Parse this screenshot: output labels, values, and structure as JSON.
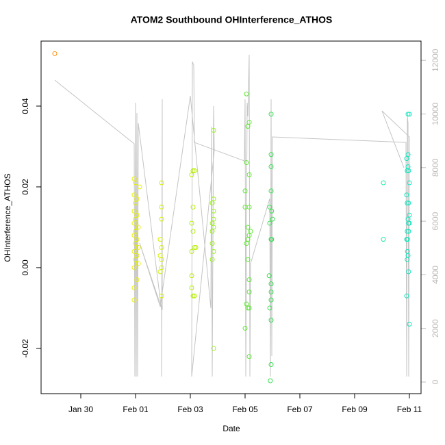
{
  "chart_data": {
    "type": "scatter",
    "title": "ATOM2 Southbound OHInterference_ATHOS",
    "xlabel": "Date",
    "ylabel": "OHInterference_ATHOS",
    "xlim": [
      28.55,
      42.425
    ],
    "ylim": [
      -0.0312,
      0.0561
    ],
    "y2lim": [
      -434,
      12720
    ],
    "xticks": [
      {
        "value": 30,
        "label": "Jan 30"
      },
      {
        "value": 32,
        "label": "Feb 01"
      },
      {
        "value": 34,
        "label": "Feb 03"
      },
      {
        "value": 36,
        "label": "Feb 05"
      },
      {
        "value": 38,
        "label": "Feb 07"
      },
      {
        "value": 40,
        "label": "Feb 09"
      },
      {
        "value": 42,
        "label": "Feb 11"
      }
    ],
    "yticks": [
      -0.02,
      {
        "value": 0,
        "label": "0.00"
      },
      0.02,
      0.04
    ],
    "y2ticks": [
      0,
      2000,
      4000,
      6000,
      8000,
      10000,
      12000
    ],
    "series": [
      {
        "type": "line",
        "axis": "y2",
        "color": "#c4c4c4",
        "x": [
          29.05,
          31.95,
          31.975,
          32.0,
          32.025,
          32.05,
          32.075,
          32.1,
          32.95,
          32.95,
          32.975,
          32.975,
          32.15,
          32.9,
          34.0,
          34.75,
          34.775,
          34.8,
          34.85,
          34.875,
          34.05,
          34.075,
          34.125,
          34.15,
          35.975,
          36.0,
          36.025,
          36.075,
          36.1,
          36.15,
          36.175,
          36.2,
          36.9,
          36.925,
          36.95,
          36.975,
          37.0,
          41.875,
          41.9,
          41.925,
          41.95,
          41.975,
          42.0,
          41.0,
          41.8
        ],
        "values": [
          11263,
          8888,
          204,
          10420,
          204,
          10037,
          204,
          9654,
          2682,
          204,
          10548,
          2682,
          5185,
          2810,
          10676,
          2758,
          9526,
          204,
          10293,
          8633,
          204,
          11953,
          11825,
          8939,
          8249,
          10548,
          204,
          10420,
          9910,
          12208,
          204,
          4418,
          6845,
          204,
          10548,
          970,
          9143,
          8939,
          204,
          9910,
          9654,
          204,
          9143,
          10114,
          7994
        ]
      },
      {
        "color": "#ff8c00",
        "x": [
          29.05
        ],
        "values": [
          0.053
        ]
      },
      {
        "color": "#e8f000",
        "x": [
          31.95,
          32.0,
          31.95,
          32.05,
          32.0,
          31.95,
          32.05,
          32.0,
          31.95,
          32.1,
          32.0,
          31.95,
          32.05,
          32.0,
          32.1,
          31.95,
          32.05,
          32.0,
          32.1,
          31.95,
          32.05,
          31.95,
          31.95,
          32.15
        ],
        "values": [
          0.022,
          0.021,
          0.018,
          0.017,
          0.016,
          0.014,
          0.013,
          0.012,
          0.011,
          0.01,
          0.009,
          0.008,
          0.007,
          0.006,
          0.005,
          0.004,
          0.003,
          0.002,
          0.001,
          0.0,
          -0.003,
          -0.005,
          -0.008,
          0.02
        ]
      },
      {
        "color": "#d4f000",
        "x": [
          32.95,
          32.95,
          32.95,
          32.9,
          32.95,
          32.9,
          32.95,
          32.95,
          32.9,
          32.95
        ],
        "values": [
          0.021,
          0.015,
          0.012,
          0.007,
          0.005,
          0.003,
          0.002,
          0.0,
          -0.001,
          -0.007
        ]
      },
      {
        "color": "#b4f000",
        "x": [
          34.1,
          34.15,
          34.05,
          34.1,
          34.05,
          34.1,
          34.15,
          34.2,
          34.05,
          34.05,
          34.05,
          34.1,
          34.15
        ],
        "values": [
          0.024,
          0.024,
          0.023,
          0.015,
          0.011,
          0.009,
          0.005,
          0.005,
          0.004,
          -0.002,
          -0.005,
          -0.007,
          -0.007
        ]
      },
      {
        "color": "#9cf020",
        "x": [
          34.85,
          34.85,
          34.8,
          34.85,
          34.85,
          34.8,
          34.85,
          34.8,
          34.8,
          34.85,
          34.8,
          34.85
        ],
        "values": [
          0.034,
          0.017,
          0.016,
          0.014,
          0.012,
          0.011,
          0.01,
          0.009,
          0.006,
          0.004,
          0.002,
          -0.02
        ]
      },
      {
        "color": "#5ce830",
        "x": [
          36.05,
          36.15,
          36.1,
          36.05,
          36.15,
          36.0,
          36.0,
          36.15,
          36.1,
          36.2,
          36.15,
          36.1,
          36.05,
          36.1,
          36.15,
          36.15,
          36.05,
          36.1,
          36.15,
          36.0,
          36.15
        ],
        "values": [
          0.043,
          0.036,
          0.035,
          0.026,
          0.023,
          0.019,
          0.015,
          0.015,
          0.01,
          0.009,
          0.008,
          0.007,
          0.006,
          0.002,
          -0.003,
          -0.006,
          -0.009,
          -0.01,
          -0.01,
          -0.015,
          -0.022
        ]
      },
      {
        "color": "#38e050",
        "x": [
          36.95,
          36.95,
          36.95,
          36.95,
          36.9,
          36.97,
          37.0,
          36.9,
          36.95,
          36.97,
          36.88,
          36.95,
          36.95,
          36.95,
          36.9,
          36.95,
          36.95,
          36.92
        ],
        "values": [
          0.038,
          0.028,
          0.025,
          0.019,
          0.015,
          0.014,
          0.012,
          0.011,
          0.007,
          0.007,
          -0.002,
          -0.004,
          -0.006,
          -0.008,
          -0.01,
          -0.013,
          -0.024,
          -0.028
        ]
      },
      {
        "color": "#20e8a0",
        "x": [
          41.05,
          41.05
        ],
        "values": [
          0.021,
          0.007
        ]
      },
      {
        "color": "#10e8c0",
        "x": [
          41.95,
          42.0,
          41.95,
          41.9,
          41.95,
          41.92,
          41.97,
          42.0,
          41.9,
          41.92,
          41.97,
          42.0,
          41.95,
          41.97,
          42.0,
          41.92,
          41.97,
          41.9,
          41.93,
          41.93,
          41.95,
          41.92,
          41.97,
          41.9,
          42.0
        ],
        "values": [
          0.038,
          0.038,
          0.028,
          0.027,
          0.025,
          0.024,
          0.024,
          0.021,
          0.018,
          0.016,
          0.016,
          0.013,
          0.012,
          0.011,
          0.011,
          0.009,
          0.009,
          0.007,
          0.007,
          0.004,
          0.003,
          0.002,
          -0.001,
          -0.007,
          -0.014
        ]
      }
    ]
  }
}
